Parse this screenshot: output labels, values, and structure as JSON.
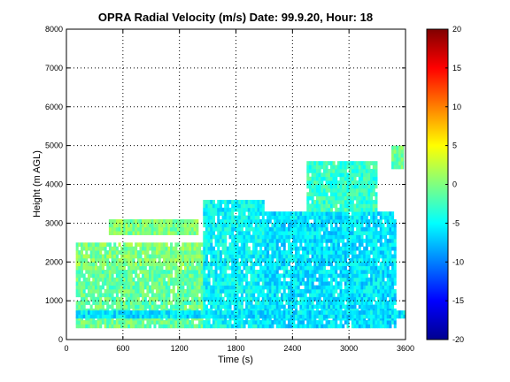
{
  "chart_data": {
    "type": "heatmap",
    "title": "OPRA Radial Velocity (m/s)  Date: 99.9.20, Hour: 18",
    "xlabel": "Time (s)",
    "ylabel": "Height (m AGL)",
    "xlim": [
      0,
      3600
    ],
    "ylim": [
      0,
      8000
    ],
    "xticks": [
      0,
      600,
      1200,
      1800,
      2400,
      3000,
      3600
    ],
    "yticks": [
      0,
      1000,
      2000,
      3000,
      4000,
      5000,
      6000,
      7000,
      8000
    ],
    "grid": true,
    "colorbar": {
      "colormap": "jet",
      "range": [
        -20,
        20
      ],
      "ticks": [
        -20,
        -15,
        -10,
        -5,
        0,
        5,
        10,
        15,
        20
      ]
    },
    "echo_regions": [
      {
        "t": [
          100,
          1450
        ],
        "z": [
          300,
          1800
        ],
        "v": -1
      },
      {
        "t": [
          100,
          1450
        ],
        "z": [
          1800,
          2500
        ],
        "v": 0
      },
      {
        "t": [
          450,
          1400
        ],
        "z": [
          2700,
          3100
        ],
        "v": 0
      },
      {
        "t": [
          1450,
          2100
        ],
        "z": [
          300,
          3600
        ],
        "v": -5
      },
      {
        "t": [
          2100,
          3500
        ],
        "z": [
          300,
          3300
        ],
        "v": -6
      },
      {
        "t": [
          2550,
          3300
        ],
        "z": [
          3300,
          4600
        ],
        "v": -3
      },
      {
        "t": [
          3450,
          3580
        ],
        "z": [
          4400,
          5000
        ],
        "v": -1
      },
      {
        "t": [
          100,
          3600
        ],
        "z": [
          550,
          750
        ],
        "v": -6
      }
    ]
  }
}
